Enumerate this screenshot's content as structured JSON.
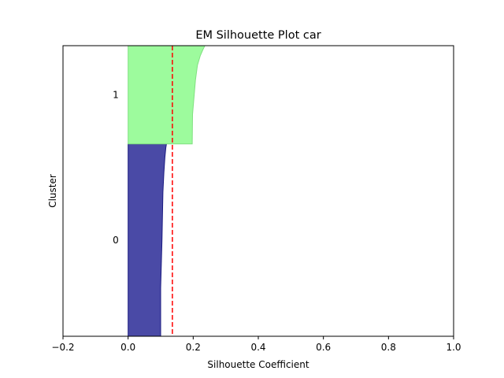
{
  "chart_data": {
    "type": "area",
    "title": "EM Silhouette Plot car",
    "xlabel": "Silhouette Coefficient",
    "ylabel": "Cluster",
    "xlim": [
      -0.2,
      1.0
    ],
    "ylim": [
      0,
      1
    ],
    "xticks": [
      "−0.2",
      "0.0",
      "0.2",
      "0.4",
      "0.6",
      "0.8",
      "1.0"
    ],
    "xtick_values": [
      -0.2,
      0.0,
      0.2,
      0.4,
      0.6,
      0.8,
      1.0
    ],
    "grid": false,
    "reference_line": {
      "x": 0.136,
      "color": "#ff0000",
      "style": "dashed"
    },
    "clusters": [
      {
        "label": "0",
        "range": [
          0.0,
          0.662
        ],
        "fill": "#2a2a96",
        "edge": "#1a1a80",
        "profile": [
          [
            0.0,
            0.1
          ],
          [
            0.25,
            0.1
          ],
          [
            0.5,
            0.104
          ],
          [
            0.75,
            0.107
          ],
          [
            0.85,
            0.11
          ],
          [
            0.93,
            0.113
          ],
          [
            0.98,
            0.116
          ],
          [
            1.0,
            0.118
          ]
        ]
      },
      {
        "label": "1",
        "range": [
          0.662,
          1.0
        ],
        "fill": "#98fb98",
        "edge": "#80e080",
        "profile": [
          [
            0.0,
            0.197
          ],
          [
            0.3,
            0.198
          ],
          [
            0.5,
            0.203
          ],
          [
            0.65,
            0.207
          ],
          [
            0.8,
            0.213
          ],
          [
            0.9,
            0.222
          ],
          [
            0.96,
            0.23
          ],
          [
            1.0,
            0.236
          ]
        ]
      }
    ]
  }
}
